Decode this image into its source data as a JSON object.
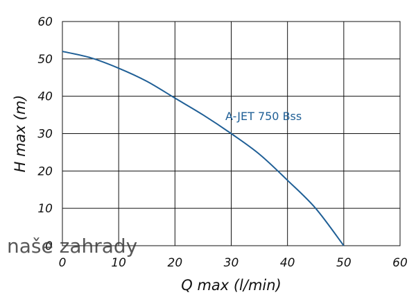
{
  "chart_data": {
    "type": "line",
    "xlabel": "Q max (l/min)",
    "ylabel": "H max (m)",
    "xlim": [
      0,
      60
    ],
    "ylim": [
      0,
      60
    ],
    "xticks": [
      0,
      10,
      20,
      30,
      40,
      50,
      60
    ],
    "yticks": [
      0,
      10,
      20,
      30,
      40,
      50,
      60
    ],
    "grid": true,
    "series": [
      {
        "name": "A-JET 750 Bss",
        "color": "#1f5f96",
        "x": [
          0,
          5,
          10,
          15,
          20,
          25,
          30,
          35,
          40,
          45,
          50
        ],
        "y": [
          52,
          50.3,
          47.5,
          44,
          39.5,
          35,
          30,
          24.5,
          17.5,
          10,
          0
        ]
      }
    ]
  },
  "watermark": {
    "text": "naše zahrady"
  }
}
